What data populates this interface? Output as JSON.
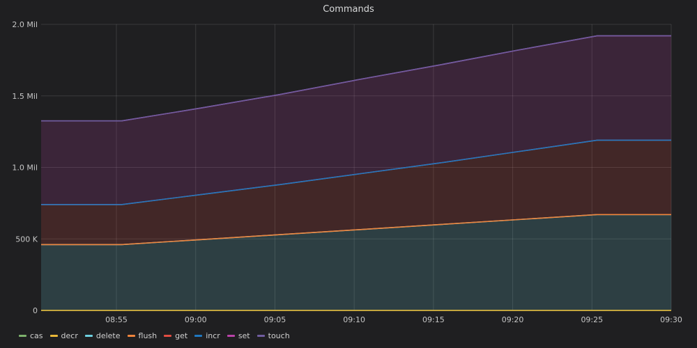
{
  "chart_data": {
    "type": "area",
    "title": "Commands",
    "stacked": true,
    "x": [
      "08:50",
      "08:55",
      "09:00",
      "09:05",
      "09:10",
      "09:15",
      "09:20",
      "09:25",
      "09:30"
    ],
    "x_ticks": [
      "08:55",
      "09:00",
      "09:05",
      "09:10",
      "09:15",
      "09:20",
      "09:25",
      "09:30"
    ],
    "y_ticks": [
      "0",
      "500 K",
      "1.0 Mil",
      "1.5 Mil",
      "2.0 Mil"
    ],
    "ylim": [
      0,
      2000000
    ],
    "grid": true,
    "legend_position": "bottom-left",
    "series": [
      {
        "name": "cas",
        "color": "#7eb26d",
        "values": [
          0,
          0,
          0,
          0,
          0,
          0,
          0,
          0,
          0
        ]
      },
      {
        "name": "decr",
        "color": "#eab839",
        "values": [
          0,
          0,
          0,
          0,
          0,
          0,
          0,
          0,
          0
        ]
      },
      {
        "name": "delete",
        "color": "#6ed0e0",
        "values": [
          460000,
          460000,
          495000,
          530000,
          565000,
          600000,
          635000,
          670000,
          670000
        ]
      },
      {
        "name": "flush",
        "color": "#ef843c",
        "values": [
          0,
          0,
          0,
          0,
          0,
          0,
          0,
          0,
          0
        ]
      },
      {
        "name": "get",
        "color": "#e24d42",
        "values": [
          280000,
          280000,
          315000,
          350000,
          390000,
          430000,
          475000,
          520000,
          520000
        ]
      },
      {
        "name": "incr",
        "color": "#1f78c1",
        "values": [
          0,
          0,
          0,
          0,
          0,
          0,
          0,
          0,
          0
        ]
      },
      {
        "name": "set",
        "color": "#ba43a9",
        "values": [
          585000,
          585000,
          605000,
          630000,
          660000,
          685000,
          710000,
          730000,
          730000
        ]
      },
      {
        "name": "touch",
        "color": "#705da0",
        "values": [
          0,
          0,
          0,
          0,
          0,
          0,
          0,
          0,
          0
        ]
      }
    ]
  }
}
